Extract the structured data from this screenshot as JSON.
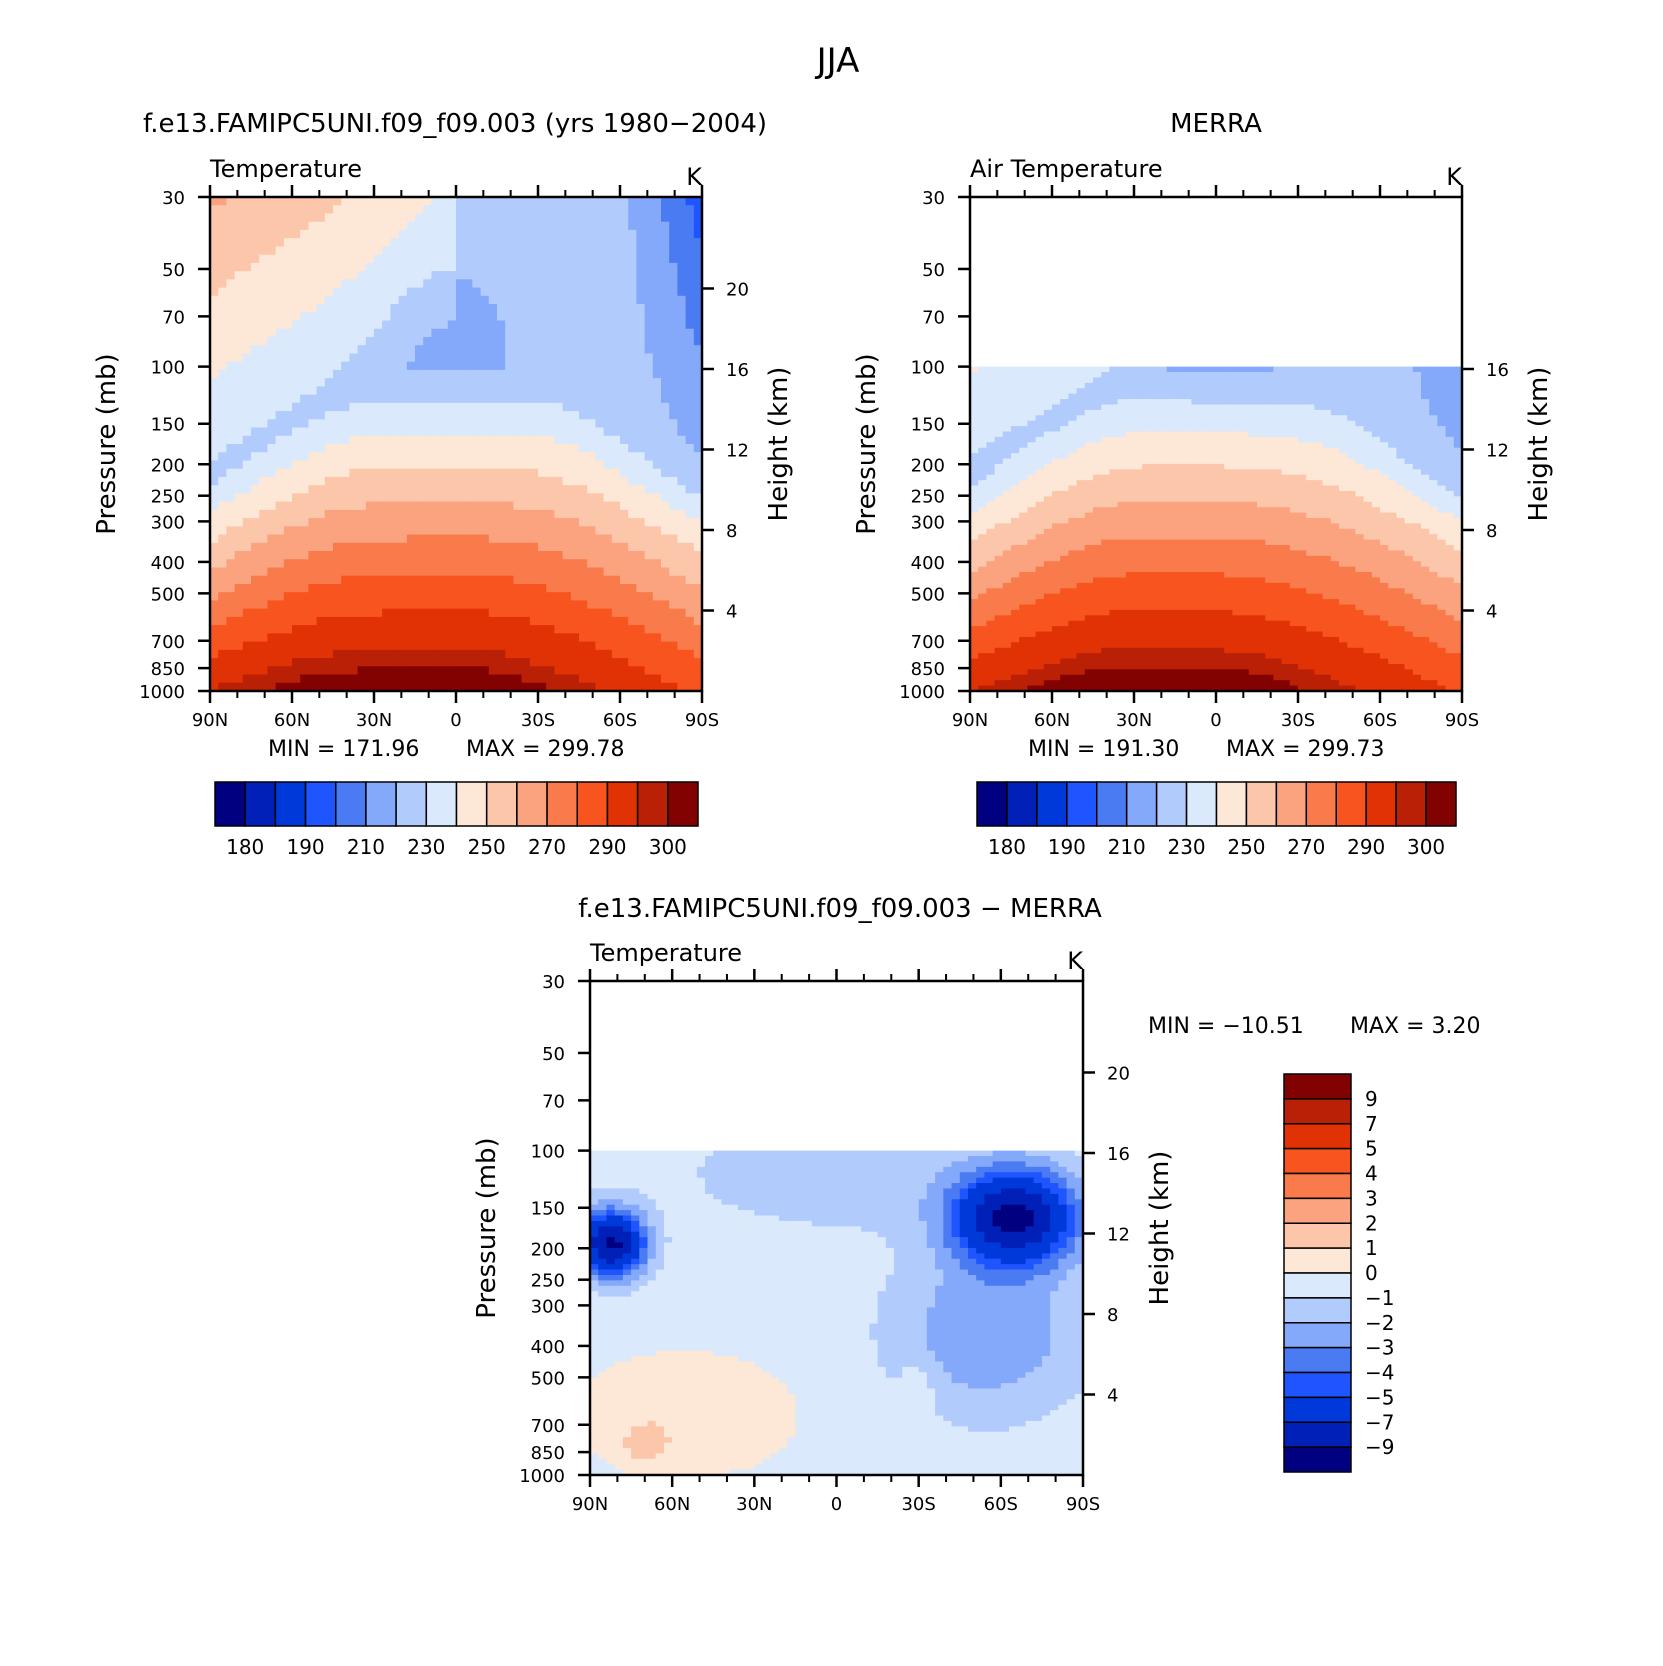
{
  "figure": {
    "title": "JJA"
  },
  "chart_data": [
    {
      "type": "heatmap",
      "title": "f.e13.FAMIPC5UNI.f09_f09.003 (yrs 1980−2004)",
      "subtitle": "Temperature",
      "units": "K",
      "xlabel": "",
      "ylabel": "Pressure (mb)",
      "ylabel_right": "Height (km)",
      "x_ticks": [
        "90N",
        "60N",
        "30N",
        "0",
        "30S",
        "60S",
        "90S"
      ],
      "y_ticks": [
        "30",
        "50",
        "70",
        "100",
        "150",
        "200",
        "250",
        "300",
        "400",
        "500",
        "700",
        "850",
        "1000"
      ],
      "y_ticks_right": [
        "20",
        "16",
        "12",
        "8",
        "4"
      ],
      "y_scale": "log",
      "xlim": [
        90,
        -90
      ],
      "ylim": [
        1000,
        30
      ],
      "min_label": "MIN",
      "min": "171.96",
      "max_label": "MAX",
      "max": "299.78",
      "field": "model",
      "colorbar": {
        "orientation": "horizontal",
        "labels": [
          "180",
          "190",
          "210",
          "230",
          "250",
          "270",
          "290",
          "300"
        ],
        "levels": [
          175,
          180,
          185,
          190,
          200,
          210,
          220,
          230,
          240,
          250,
          260,
          270,
          280,
          290,
          295,
          300
        ],
        "colors": [
          "#000080",
          "#0020b8",
          "#0039d9",
          "#1f55ff",
          "#4b7bf2",
          "#84a9fa",
          "#b1cbfc",
          "#dae9fb",
          "#fde7d6",
          "#fcc6aa",
          "#faa37e",
          "#f97a4b",
          "#f8541f",
          "#e03204",
          "#b92005",
          "#820202"
        ]
      }
    },
    {
      "type": "heatmap",
      "title": "MERRA",
      "subtitle": "Air Temperature",
      "units": "K",
      "xlabel": "",
      "ylabel": "Pressure (mb)",
      "ylabel_right": "Height (km)",
      "x_ticks": [
        "90N",
        "60N",
        "30N",
        "0",
        "30S",
        "60S",
        "90S"
      ],
      "y_ticks": [
        "30",
        "50",
        "70",
        "100",
        "150",
        "200",
        "250",
        "300",
        "400",
        "500",
        "700",
        "850",
        "1000"
      ],
      "y_ticks_right": [
        "16",
        "12",
        "8",
        "4"
      ],
      "y_scale": "log",
      "xlim": [
        90,
        -90
      ],
      "ylim": [
        1000,
        30
      ],
      "data_top_pressure": 100,
      "min_label": "MIN",
      "min": "191.30",
      "max_label": "MAX",
      "max": "299.73",
      "field": "obs",
      "colorbar": {
        "orientation": "horizontal",
        "labels": [
          "180",
          "190",
          "210",
          "230",
          "250",
          "270",
          "290",
          "300"
        ],
        "levels": [
          175,
          180,
          185,
          190,
          200,
          210,
          220,
          230,
          240,
          250,
          260,
          270,
          280,
          290,
          295,
          300
        ],
        "colors": [
          "#000080",
          "#0020b8",
          "#0039d9",
          "#1f55ff",
          "#4b7bf2",
          "#84a9fa",
          "#b1cbfc",
          "#dae9fb",
          "#fde7d6",
          "#fcc6aa",
          "#faa37e",
          "#f97a4b",
          "#f8541f",
          "#e03204",
          "#b92005",
          "#820202"
        ]
      }
    },
    {
      "type": "heatmap",
      "title": "f.e13.FAMIPC5UNI.f09_f09.003 − MERRA",
      "subtitle": "Temperature",
      "units": "K",
      "xlabel": "",
      "ylabel": "Pressure (mb)",
      "ylabel_right": "Height (km)",
      "x_ticks": [
        "90N",
        "60N",
        "30N",
        "0",
        "30S",
        "60S",
        "90S"
      ],
      "y_ticks": [
        "30",
        "50",
        "70",
        "100",
        "150",
        "200",
        "250",
        "300",
        "400",
        "500",
        "700",
        "850",
        "1000"
      ],
      "y_ticks_right": [
        "20",
        "16",
        "12",
        "8",
        "4"
      ],
      "y_scale": "log",
      "xlim": [
        90,
        -90
      ],
      "ylim": [
        1000,
        30
      ],
      "data_top_pressure": 100,
      "min_label": "MIN",
      "min": "−10.51",
      "max_label": "MAX",
      "max": "3.20",
      "field": "diff",
      "colorbar": {
        "orientation": "vertical",
        "labels": [
          "9",
          "7",
          "5",
          "4",
          "3",
          "2",
          "1",
          "0",
          "−1",
          "−2",
          "−3",
          "−4",
          "−5",
          "−7",
          "−9"
        ],
        "levels": [
          -10,
          -9,
          -7,
          -5,
          -4,
          -3,
          -2,
          -1,
          0,
          1,
          2,
          3,
          4,
          5,
          7,
          9,
          10
        ],
        "colors": [
          "#000080",
          "#0020b8",
          "#0039d9",
          "#1f55ff",
          "#4b7bf2",
          "#84a9fa",
          "#b1cbfc",
          "#dae9fb",
          "#fde7d6",
          "#fcc6aa",
          "#faa37e",
          "#f97a4b",
          "#f8541f",
          "#e03204",
          "#b92005",
          "#820202"
        ]
      }
    }
  ]
}
